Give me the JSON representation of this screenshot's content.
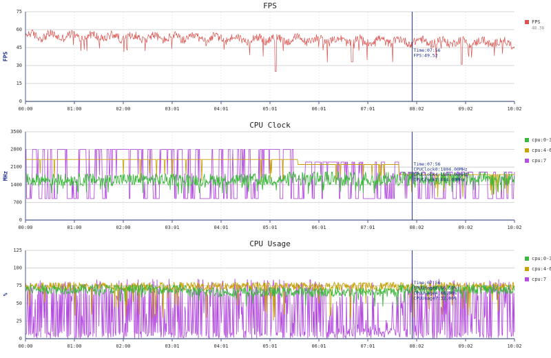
{
  "time_ticks": [
    "00:00",
    "01:00",
    "02:00",
    "03:01",
    "04:01",
    "05:01",
    "06:01",
    "07:01",
    "08:02",
    "09:02",
    "10:02"
  ],
  "cursor": {
    "x_minutes": 476
  },
  "chart_data": [
    {
      "type": "line",
      "title": "FPS",
      "ylabel": "FPS",
      "ylim": [
        0,
        75
      ],
      "yticks": [
        "0",
        "15",
        "30",
        "45",
        "60",
        "75"
      ],
      "grid": true,
      "legend": "right",
      "series": [
        {
          "name": "FPS",
          "color": "#d9534f",
          "legend_value": "48.38"
        }
      ],
      "tooltip": [
        "Time:07:56",
        "FPS:49.52"
      ]
    },
    {
      "type": "line",
      "title": "CPU Clock",
      "ylabel": "MHz",
      "ylim": [
        0,
        3500
      ],
      "yticks": [
        "0",
        "700",
        "1400",
        "2100",
        "2800",
        "3500"
      ],
      "grid": true,
      "legend": "right",
      "series": [
        {
          "name": "cpu:0-3",
          "color": "#3cb83c"
        },
        {
          "name": "cpu:4-6",
          "color": "#c8a000"
        },
        {
          "name": "cpu:7",
          "color": "#b54fe0"
        }
      ],
      "tooltip": [
        "Time:07:56",
        "CPUClock0:1804.00MHz",
        "CPUClock4:1800.00MHz",
        "CPUClock7:864.00MHz"
      ]
    },
    {
      "type": "line",
      "title": "CPU Usage",
      "ylabel": "%",
      "ylim": [
        0,
        125
      ],
      "yticks": [
        "0",
        "25",
        "50",
        "75",
        "100",
        "125"
      ],
      "grid": true,
      "legend": "right",
      "series": [
        {
          "name": "cpu:0-3",
          "color": "#3cb83c"
        },
        {
          "name": "cpu:4-6",
          "color": "#c8a000"
        },
        {
          "name": "cpu:7",
          "color": "#b54fe0"
        }
      ],
      "tooltip": [
        "Time:07:56",
        "CPUUsage0:66.50%",
        "CPUUsage4:68.00%",
        "CPUUsage7:32.00%"
      ]
    }
  ]
}
